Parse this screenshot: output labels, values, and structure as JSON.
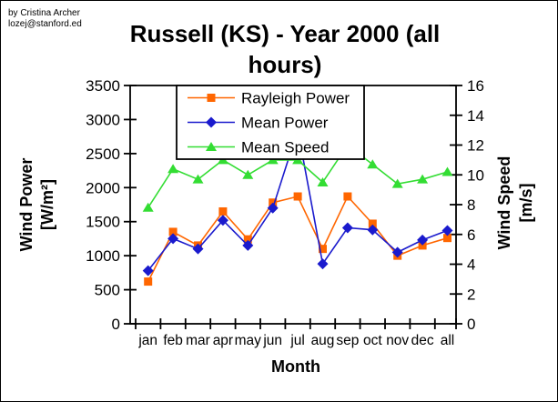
{
  "credit": {
    "line1": "by Cristina Archer",
    "line2": "lozej@stanford.ed"
  },
  "chart_data": {
    "type": "line",
    "title": "Russell (KS) - Year 2000 (all hours)",
    "title_lines": [
      "Russell (KS) - Year 2000 (all",
      "hours)"
    ],
    "categories": [
      "jan",
      "feb",
      "mar",
      "apr",
      "may",
      "jun",
      "jul",
      "aug",
      "sep",
      "oct",
      "nov",
      "dec",
      "all"
    ],
    "x_axis": {
      "title": "Month"
    },
    "left_axis": {
      "title": "Wind Power [W/m²]",
      "title_lines": [
        "Wind Power",
        "[W/m²]"
      ],
      "min": 0,
      "max": 3500,
      "tick_step": 500,
      "tick_labels": [
        "0",
        "500",
        "1000",
        "1500",
        "2000",
        "2500",
        "3000",
        "3500"
      ]
    },
    "right_axis": {
      "title": "Wind Speed [m/s]",
      "title_lines": [
        "Wind Speed",
        "[m/s]"
      ],
      "min": 0,
      "max": 16,
      "tick_step": 2,
      "tick_labels": [
        "0",
        "2",
        "4",
        "6",
        "8",
        "10",
        "12",
        "14",
        "16"
      ]
    },
    "grid": false,
    "legend": {
      "position": "top-center",
      "entries": [
        "Rayleigh Power",
        "Mean Power",
        "Mean Speed"
      ]
    },
    "series": [
      {
        "name": "Rayleigh Power",
        "axis": "left",
        "marker": "square",
        "color": "#FF6600",
        "values": [
          620,
          1350,
          1150,
          1650,
          1240,
          1780,
          1870,
          1100,
          1870,
          1470,
          1000,
          1150,
          1260
        ]
      },
      {
        "name": "Mean Power",
        "axis": "left",
        "marker": "diamond",
        "color": "#1A1ACD",
        "values": [
          780,
          1250,
          1100,
          1520,
          1150,
          1700,
          2850,
          880,
          1410,
          1380,
          1050,
          1230,
          1370
        ]
      },
      {
        "name": "Mean Speed",
        "axis": "right",
        "marker": "triangle",
        "color": "#33DD33",
        "values": [
          7.8,
          10.4,
          9.7,
          11.0,
          10.0,
          11.0,
          11.0,
          9.5,
          12.0,
          10.7,
          9.4,
          9.7,
          10.2
        ]
      }
    ]
  }
}
